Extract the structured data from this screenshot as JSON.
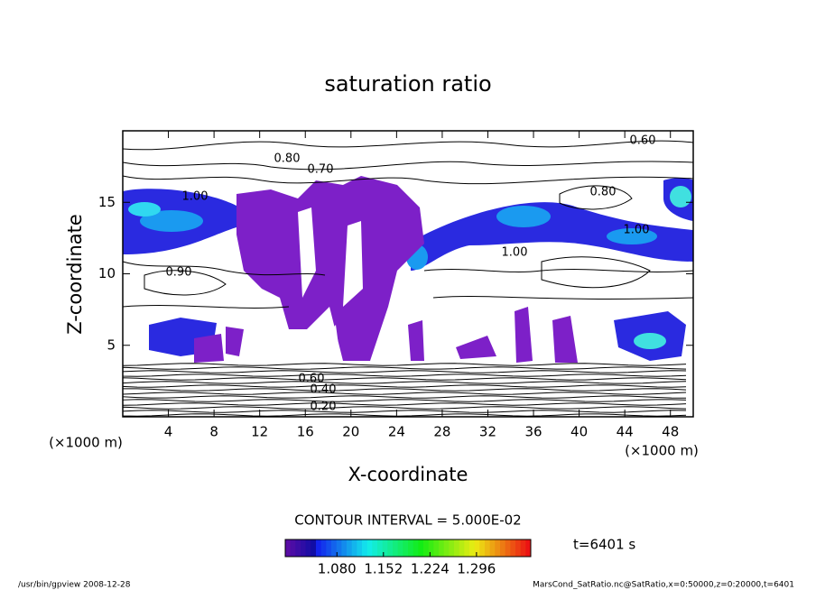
{
  "chart_data": {
    "type": "contour",
    "title": "saturation ratio",
    "xlabel": "X-coordinate",
    "ylabel": "Z-coordinate",
    "xunit": "(×1000 m)",
    "yunit": "(×1000 m)",
    "xlim": [
      0,
      50
    ],
    "ylim": [
      0,
      20
    ],
    "xticks": [
      4,
      8,
      12,
      16,
      20,
      24,
      28,
      32,
      36,
      40,
      44,
      48
    ],
    "yticks": [
      5,
      10,
      15
    ],
    "contour_labels": [
      "0.60",
      "0.80",
      "0.70",
      "1.00",
      "0.80",
      "1.00",
      "1.00",
      "0.90",
      "0.60",
      "0.40",
      "0.20"
    ],
    "contour_interval": "CONTOUR INTERVAL = 5.000E-02",
    "clim": [
      1.0,
      1.38
    ],
    "cticks": [
      {
        "value": 1.08,
        "label": "1.080"
      },
      {
        "value": 1.152,
        "label": "1.152"
      },
      {
        "value": 1.224,
        "label": "1.224"
      },
      {
        "value": 1.296,
        "label": "1.296"
      }
    ],
    "time_label": "t=6401 s",
    "footer_left": "/usr/bin/gpview   2008-12-28",
    "footer_right": "MarsCond_SatRatio.nc@SatRatio,x=0:50000,z=0:20000,t=6401"
  }
}
